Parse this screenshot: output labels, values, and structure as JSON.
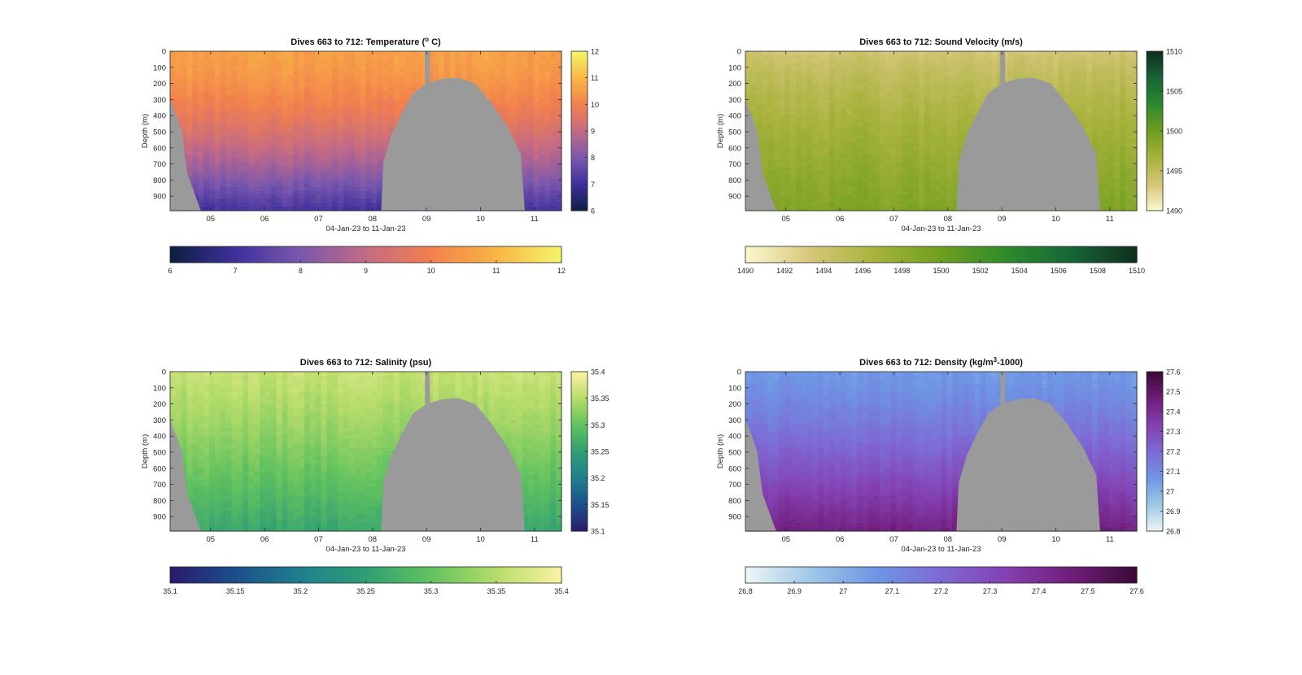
{
  "chart_data": [
    {
      "type": "heatmap",
      "title": "Dives 663 to 712: Temperature (",
      "title_sup": "o",
      "title_end": " C)",
      "xlabel": "04-Jan-23 to 11-Jan-23",
      "ylabel": "Depth (m)",
      "x_ticks": [
        "05",
        "06",
        "07",
        "08",
        "09",
        "10",
        "11"
      ],
      "xlim": [
        4.25,
        11.5
      ],
      "y_ticks": [
        0,
        100,
        200,
        300,
        400,
        500,
        600,
        700,
        800,
        900
      ],
      "ylim": [
        0,
        990
      ],
      "clim": [
        6,
        12
      ],
      "colorbar_ticks": [
        "12",
        "11",
        "10",
        "9",
        "8",
        "7",
        "6"
      ],
      "h_colorbar_ticks": [
        "6",
        "7",
        "8",
        "9",
        "10",
        "11",
        "12"
      ],
      "colors": [
        "#0b2042",
        "#3f2f9c",
        "#7a58ad",
        "#c36a86",
        "#f2804d",
        "#f9b545",
        "#f4f56a"
      ],
      "mask_color": "#9a9a9a",
      "surface": {
        "value": 10.6,
        "deep": 7.1,
        "profile_exp": 1.6
      },
      "bottom_left": [
        [
          4.25,
          300
        ],
        [
          4.37,
          400
        ],
        [
          4.47,
          500
        ],
        [
          4.57,
          760
        ],
        [
          4.82,
          990
        ]
      ],
      "seamount": [
        [
          8.16,
          990
        ],
        [
          8.2,
          690
        ],
        [
          8.35,
          520
        ],
        [
          8.55,
          380
        ],
        [
          8.75,
          260
        ],
        [
          9.0,
          200
        ],
        [
          9.3,
          170
        ],
        [
          9.6,
          165
        ],
        [
          9.9,
          200
        ],
        [
          10.2,
          320
        ],
        [
          10.5,
          470
        ],
        [
          10.75,
          640
        ],
        [
          10.82,
          990
        ]
      ],
      "dive_gap": [
        8.97,
        9.06,
        0,
        200
      ]
    },
    {
      "type": "heatmap",
      "title": "Dives 663 to 712: Sound Velocity (m/s)",
      "xlabel": "04-Jan-23 to 11-Jan-23",
      "ylabel": "Depth (m)",
      "x_ticks": [
        "05",
        "06",
        "07",
        "08",
        "09",
        "10",
        "11"
      ],
      "xlim": [
        4.25,
        11.5
      ],
      "y_ticks": [
        0,
        100,
        200,
        300,
        400,
        500,
        600,
        700,
        800,
        900
      ],
      "ylim": [
        0,
        990
      ],
      "clim": [
        1490,
        1510
      ],
      "colorbar_ticks": [
        "1510",
        "1505",
        "1500",
        "1495",
        "1490"
      ],
      "h_colorbar_ticks": [
        "1490",
        "1492",
        "1494",
        "1496",
        "1498",
        "1500",
        "1502",
        "1504",
        "1506",
        "1508",
        "1510"
      ],
      "colors": [
        "#fdf7cf",
        "#d6c67a",
        "#a7b23c",
        "#6f9e1f",
        "#2e8a2c",
        "#176538",
        "#0f2e1d"
      ],
      "mask_color": "#9a9a9a",
      "surface": {
        "value": 1493.5,
        "deep": 1499.0,
        "profile_exp": 0.7
      },
      "bottom_left": [
        [
          4.25,
          300
        ],
        [
          4.37,
          400
        ],
        [
          4.47,
          500
        ],
        [
          4.57,
          760
        ],
        [
          4.82,
          990
        ]
      ],
      "seamount": [
        [
          8.16,
          990
        ],
        [
          8.2,
          690
        ],
        [
          8.35,
          520
        ],
        [
          8.55,
          380
        ],
        [
          8.75,
          260
        ],
        [
          9.0,
          200
        ],
        [
          9.3,
          170
        ],
        [
          9.6,
          165
        ],
        [
          9.9,
          200
        ],
        [
          10.2,
          320
        ],
        [
          10.5,
          470
        ],
        [
          10.75,
          640
        ],
        [
          10.82,
          990
        ]
      ],
      "dive_gap": [
        8.97,
        9.06,
        0,
        200
      ]
    },
    {
      "type": "heatmap",
      "title": "Dives 663 to 712: Salinity (psu)",
      "xlabel": "04-Jan-23 to 11-Jan-23",
      "ylabel": "Depth (m)",
      "x_ticks": [
        "05",
        "06",
        "07",
        "08",
        "09",
        "10",
        "11"
      ],
      "xlim": [
        4.25,
        11.5
      ],
      "y_ticks": [
        0,
        100,
        200,
        300,
        400,
        500,
        600,
        700,
        800,
        900
      ],
      "ylim": [
        0,
        990
      ],
      "clim": [
        35.1,
        35.4
      ],
      "colorbar_ticks": [
        "35.4",
        "35.35",
        "35.3",
        "35.25",
        "35.2",
        "35.15",
        "35.1"
      ],
      "h_colorbar_ticks": [
        "35.1",
        "35.15",
        "35.2",
        "35.25",
        "35.3",
        "35.35",
        "35.4"
      ],
      "colors": [
        "#2b1a6c",
        "#1c4f8c",
        "#1f7f8e",
        "#2f9e74",
        "#62c25f",
        "#b6dc6a",
        "#fbf2a3"
      ],
      "mask_color": "#9a9a9a",
      "surface": {
        "value": 35.36,
        "deep": 35.26,
        "profile_exp": 1.2
      },
      "bottom_left": [
        [
          4.25,
          300
        ],
        [
          4.37,
          400
        ],
        [
          4.47,
          500
        ],
        [
          4.57,
          760
        ],
        [
          4.82,
          990
        ]
      ],
      "seamount": [
        [
          8.16,
          990
        ],
        [
          8.2,
          690
        ],
        [
          8.35,
          520
        ],
        [
          8.55,
          380
        ],
        [
          8.75,
          260
        ],
        [
          9.0,
          200
        ],
        [
          9.3,
          170
        ],
        [
          9.6,
          165
        ],
        [
          9.9,
          200
        ],
        [
          10.2,
          320
        ],
        [
          10.5,
          470
        ],
        [
          10.75,
          640
        ],
        [
          10.82,
          990
        ]
      ],
      "dive_gap": [
        8.97,
        9.06,
        0,
        200
      ]
    },
    {
      "type": "heatmap",
      "title": "Dives 663 to 712: Density (kg/m",
      "title_sup": "3",
      "title_end": "-1000)",
      "xlabel": "04-Jan-23 to 11-Jan-23",
      "ylabel": "Depth (m)",
      "x_ticks": [
        "05",
        "06",
        "07",
        "08",
        "09",
        "10",
        "11"
      ],
      "xlim": [
        4.25,
        11.5
      ],
      "y_ticks": [
        0,
        100,
        200,
        300,
        400,
        500,
        600,
        700,
        800,
        900
      ],
      "ylim": [
        0,
        990
      ],
      "clim": [
        26.8,
        27.6
      ],
      "colorbar_ticks": [
        "27.6",
        "27.5",
        "27.4",
        "27.3",
        "27.2",
        "27.1",
        "27",
        "26.9",
        "26.8"
      ],
      "h_colorbar_ticks": [
        "26.8",
        "26.9",
        "27",
        "27.1",
        "27.2",
        "27.3",
        "27.4",
        "27.5",
        "27.6"
      ],
      "colors": [
        "#eef6f6",
        "#9ec8e6",
        "#6e96e4",
        "#7e6ad4",
        "#8440b1",
        "#701d7a",
        "#3a0a37"
      ],
      "mask_color": "#9a9a9a",
      "surface": {
        "value": 27.06,
        "deep": 27.45,
        "profile_exp": 1.3
      },
      "bottom_left": [
        [
          4.25,
          300
        ],
        [
          4.37,
          400
        ],
        [
          4.47,
          500
        ],
        [
          4.57,
          760
        ],
        [
          4.82,
          990
        ]
      ],
      "seamount": [
        [
          8.16,
          990
        ],
        [
          8.2,
          690
        ],
        [
          8.35,
          520
        ],
        [
          8.55,
          380
        ],
        [
          8.75,
          260
        ],
        [
          9.0,
          200
        ],
        [
          9.3,
          170
        ],
        [
          9.6,
          165
        ],
        [
          9.9,
          200
        ],
        [
          10.2,
          320
        ],
        [
          10.5,
          470
        ],
        [
          10.75,
          640
        ],
        [
          10.82,
          990
        ]
      ],
      "dive_gap": [
        8.97,
        9.06,
        0,
        200
      ]
    }
  ]
}
